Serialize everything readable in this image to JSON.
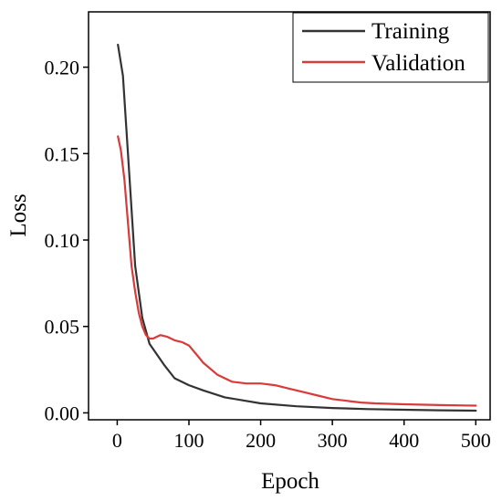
{
  "chart_data": {
    "type": "line",
    "title": "",
    "xlabel": "Epoch",
    "ylabel": "Loss",
    "xlim": [
      -40,
      520
    ],
    "ylim": [
      -0.004,
      0.232
    ],
    "xticks": [
      0,
      100,
      200,
      300,
      400,
      500
    ],
    "yticks": [
      0.0,
      0.05,
      0.1,
      0.15,
      0.2
    ],
    "xtick_labels": [
      "0",
      "100",
      "200",
      "300",
      "400",
      "500"
    ],
    "ytick_labels": [
      "0.00",
      "0.05",
      "0.10",
      "0.15",
      "0.20"
    ],
    "grid": false,
    "legend_position": "top-right",
    "series": [
      {
        "name": "Training",
        "color": "#333333",
        "x": [
          1,
          8,
          15,
          25,
          35,
          45,
          55,
          65,
          80,
          100,
          120,
          150,
          200,
          250,
          300,
          350,
          400,
          450,
          500
        ],
        "y": [
          0.213,
          0.195,
          0.15,
          0.085,
          0.055,
          0.04,
          0.034,
          0.028,
          0.02,
          0.016,
          0.013,
          0.009,
          0.0055,
          0.0038,
          0.0028,
          0.0022,
          0.0018,
          0.0015,
          0.0013
        ]
      },
      {
        "name": "Validation",
        "color": "#d93a3a",
        "x": [
          1,
          5,
          10,
          15,
          20,
          25,
          30,
          35,
          40,
          45,
          50,
          55,
          60,
          70,
          80,
          90,
          100,
          110,
          120,
          140,
          160,
          180,
          200,
          220,
          240,
          260,
          280,
          300,
          320,
          340,
          360,
          400,
          450,
          500
        ],
        "y": [
          0.16,
          0.152,
          0.135,
          0.11,
          0.085,
          0.07,
          0.058,
          0.05,
          0.045,
          0.043,
          0.043,
          0.044,
          0.045,
          0.044,
          0.042,
          0.041,
          0.039,
          0.034,
          0.029,
          0.022,
          0.018,
          0.017,
          0.017,
          0.016,
          0.014,
          0.012,
          0.01,
          0.008,
          0.007,
          0.006,
          0.0055,
          0.005,
          0.0045,
          0.0042
        ]
      }
    ]
  }
}
